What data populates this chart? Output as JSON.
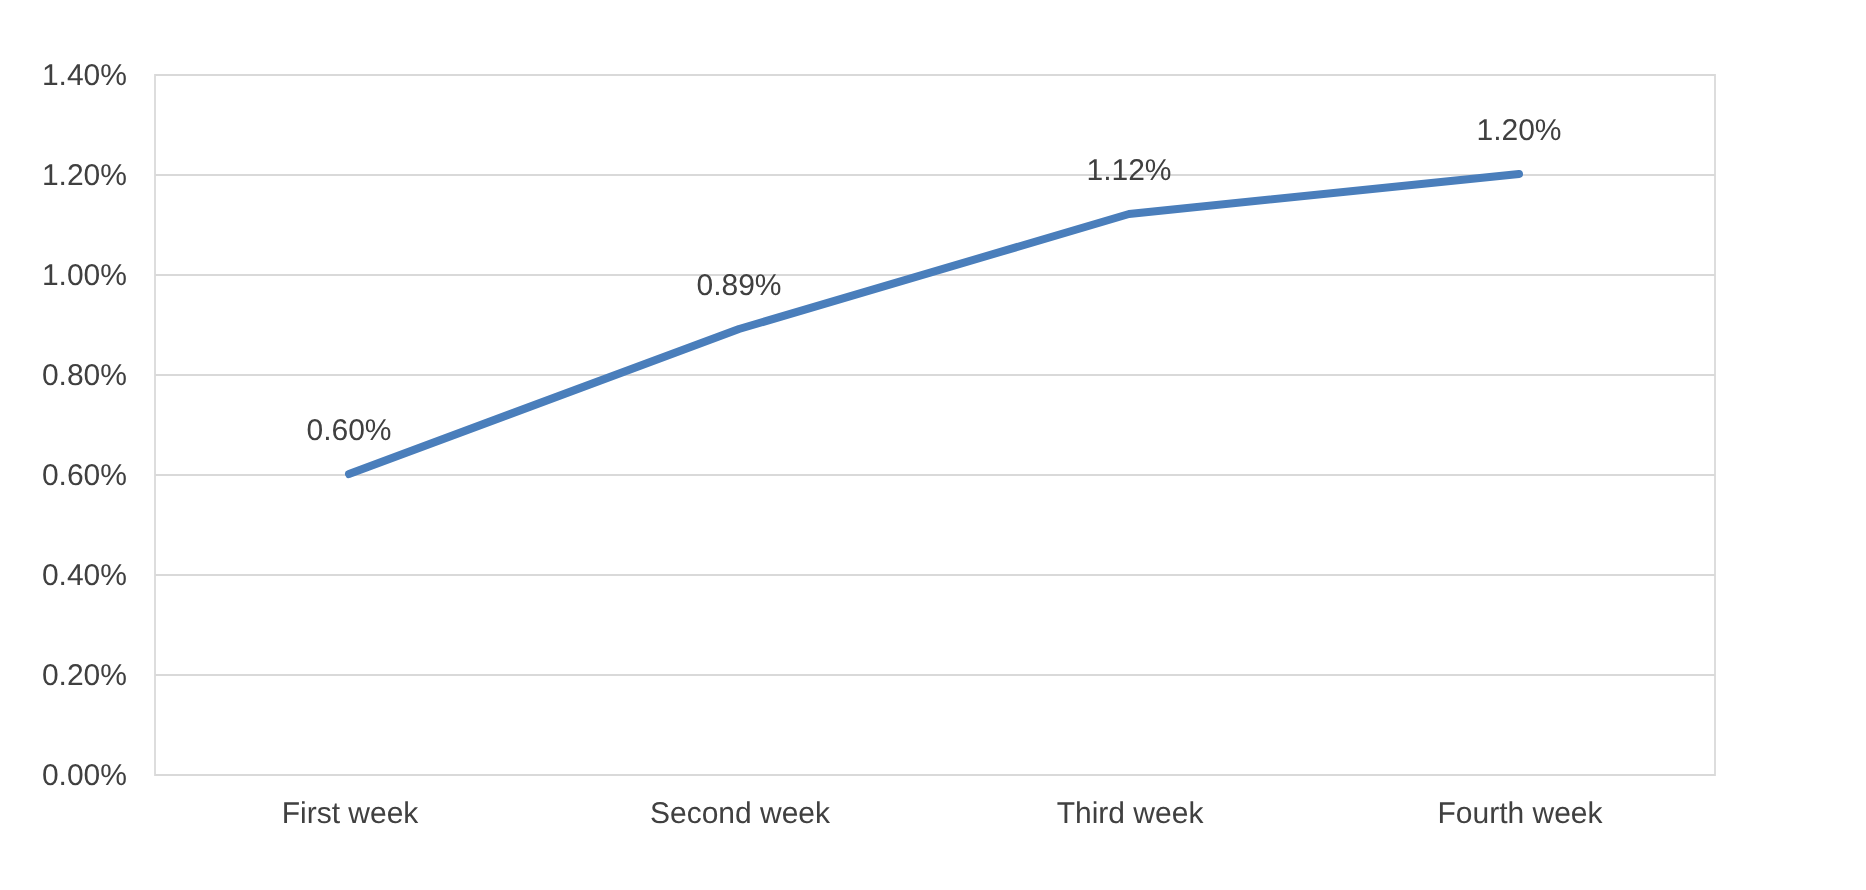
{
  "chart_data": {
    "type": "line",
    "categories": [
      "First week",
      "Second week",
      "Third week",
      "Fourth week"
    ],
    "series": [
      {
        "color": "#4a7ebb",
        "values": [
          0.6,
          0.89,
          1.12,
          1.2
        ],
        "value_labels": [
          "0.60%",
          "0.89%",
          "1.12%",
          "1.20%"
        ]
      }
    ],
    "ylim": [
      0,
      1.4
    ],
    "yticks": [
      {
        "value": 0,
        "label": "0.00%"
      },
      {
        "value": 0.2,
        "label": "0.20%"
      },
      {
        "value": 0.4,
        "label": "0.40%"
      },
      {
        "value": 0.6,
        "label": "0.60%"
      },
      {
        "value": 0.8,
        "label": "0.80%"
      },
      {
        "value": 1.0,
        "label": "1.00%"
      },
      {
        "value": 1.2,
        "label": "1.20%"
      },
      {
        "value": 1.4,
        "label": "1.40%"
      }
    ],
    "grid": "y",
    "marker": "none",
    "line_style": "solid"
  }
}
